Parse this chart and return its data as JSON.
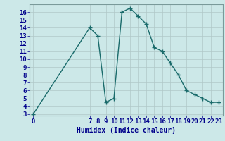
{
  "x": [
    0,
    7,
    8,
    9,
    10,
    11,
    12,
    13,
    14,
    15,
    16,
    17,
    18,
    19,
    20,
    21,
    22,
    23
  ],
  "y": [
    3,
    14,
    13,
    4.5,
    5,
    16,
    16.5,
    15.5,
    14.5,
    11.5,
    11,
    9.5,
    8,
    6,
    5.5,
    5,
    4.5,
    4.5
  ],
  "xlabel": "Humidex (Indice chaleur)",
  "ylabel": "",
  "xlim": [
    -0.5,
    23.5
  ],
  "ylim": [
    2.8,
    17.0
  ],
  "yticks": [
    3,
    4,
    5,
    6,
    7,
    8,
    9,
    10,
    11,
    12,
    13,
    14,
    15,
    16
  ],
  "xticks": [
    0,
    7,
    8,
    9,
    10,
    11,
    12,
    13,
    14,
    15,
    16,
    17,
    18,
    19,
    20,
    21,
    22,
    23
  ],
  "line_color": "#1a6b6b",
  "marker": "+",
  "bg_color": "#cce8e8",
  "grid_color": "#b0c8c8",
  "font_color": "#00008b",
  "xlabel_fontsize": 7,
  "tick_fontsize": 6.5
}
